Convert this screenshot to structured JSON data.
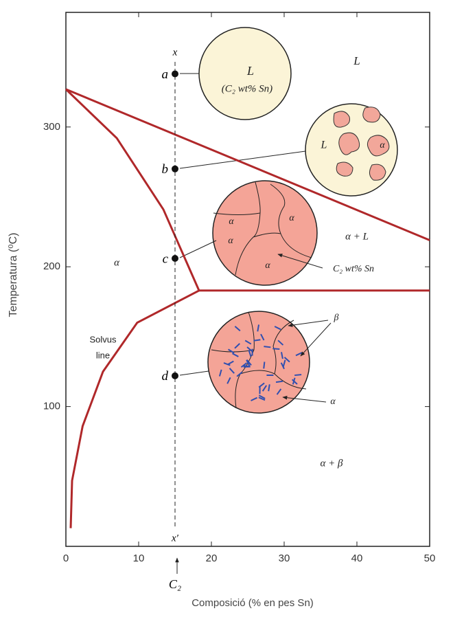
{
  "chart_data": {
    "type": "phase-diagram",
    "xlabel": "Composició (% en pes Sn)",
    "ylabel": "Temperatura (⁰C)",
    "xlim": [
      0,
      50
    ],
    "xticks": [
      0,
      10,
      20,
      30,
      40,
      50
    ],
    "ylim": [
      0,
      382
    ],
    "yticks": [
      100,
      200,
      300
    ],
    "series": [
      {
        "color": "#b0282a",
        "x": [
          0,
          7,
          13.4,
          18.3
        ],
        "values": [
          327,
          292,
          241,
          183
        ]
      },
      {
        "color": "#b0282a",
        "x": [
          0,
          50
        ],
        "values": [
          327,
          219
        ]
      },
      {
        "color": "#b0282a",
        "x": [
          18.3,
          50
        ],
        "values": [
          183,
          183
        ]
      },
      {
        "color": "#b0282a",
        "x": [
          18.3,
          9.8,
          5.1,
          2.3,
          0.85,
          0.66
        ],
        "values": [
          183,
          160,
          125,
          86,
          47,
          13
        ]
      }
    ],
    "composition_line": {
      "x": 15,
      "top_label": "x",
      "bottom_label": "x′",
      "marker_label": "C₂"
    },
    "points": [
      {
        "label": "a",
        "x": 15,
        "y": 338
      },
      {
        "label": "b",
        "x": 15,
        "y": 270
      },
      {
        "label": "c",
        "x": 15,
        "y": 206
      },
      {
        "label": "d",
        "x": 15,
        "y": 122
      }
    ],
    "annotations": [
      "L",
      "α + L",
      "α",
      "α + β",
      "Solvus",
      "line",
      "L",
      "(C₂ wt% Sn)",
      "L",
      "α",
      "α",
      "α",
      "α",
      "α",
      "C₂ wt% Sn",
      "β",
      "α"
    ]
  }
}
